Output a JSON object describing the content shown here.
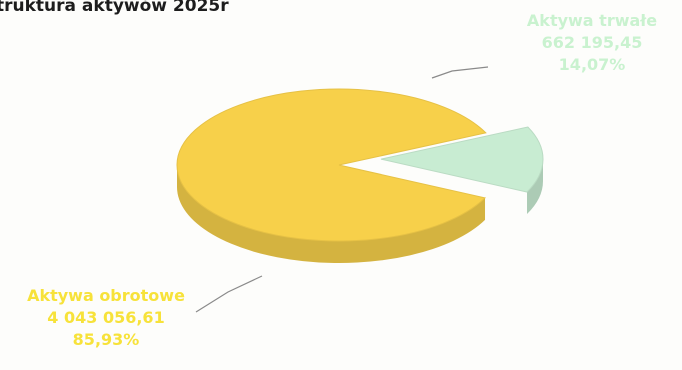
{
  "chart_data": {
    "type": "pie",
    "title": "truktura aktywów 2025r",
    "slices": [
      {
        "label": "Aktywa trwałe",
        "value": 662195.45,
        "value_text": "662 195,45",
        "percent_text": "14,07%",
        "color": "#c8ecd2"
      },
      {
        "label": "Aktywa obrotowe",
        "value": 4043056.61,
        "value_text": "4 043 056,61",
        "percent_text": "85,93%",
        "color": "#f7d04a"
      }
    ],
    "label_colors": {
      "Aktywa trwałe": "#c9f2cf",
      "Aktywa obrotowe": "#f7e23a"
    },
    "exploded": "Aktywa trwałe",
    "style": "3d",
    "legend": "none"
  }
}
